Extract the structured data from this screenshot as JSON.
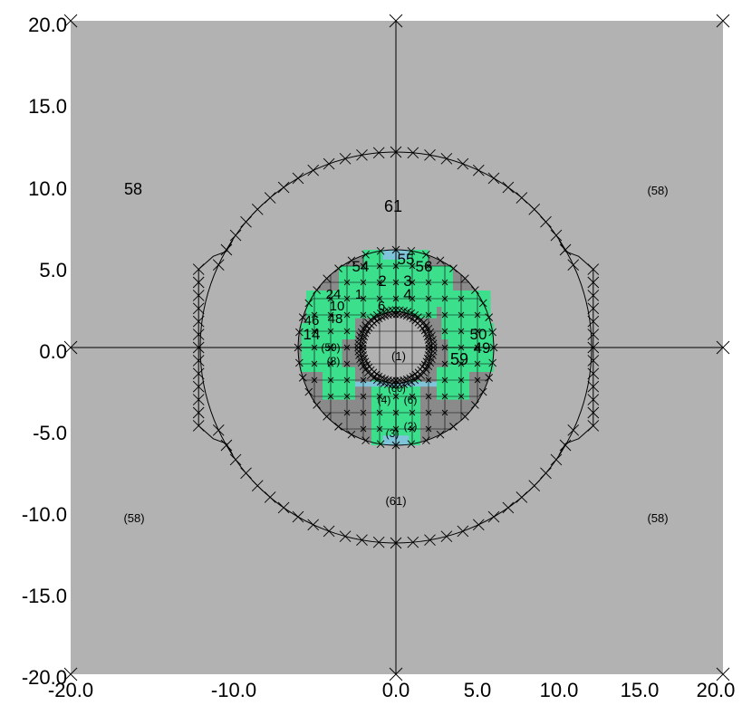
{
  "axes": {
    "x_ticks": [
      "-20.0",
      "-10.0",
      "0.0",
      "5.0",
      "10.0",
      "15.0",
      "20.0"
    ],
    "y_ticks": [
      "20.0",
      "15.0",
      "10.0",
      "5.0",
      "0.0",
      "-5.0",
      "-10.0",
      "-15.0",
      "-20.0"
    ]
  },
  "regions": {
    "outer_main": "58",
    "outer_ghosts": [
      "(58)",
      "(58)",
      "(58)"
    ],
    "ring_main": "61",
    "ring_ghost": "(61)",
    "core_big": [
      "54",
      "55",
      "56",
      "2",
      "3",
      "4",
      "6",
      "59",
      "50",
      "49",
      "24",
      "1",
      "14",
      "46",
      "48",
      "10"
    ],
    "core_ghost": [
      "(1)",
      "(59)",
      "(8)",
      "(4)",
      "(6)",
      "(2)",
      "(3)",
      "(60)"
    ]
  },
  "colors": {
    "background": "#b2b2b2",
    "core_fill": "#3cdf8c",
    "accent_fill": "#7fc4d8",
    "lines": "#000000"
  }
}
